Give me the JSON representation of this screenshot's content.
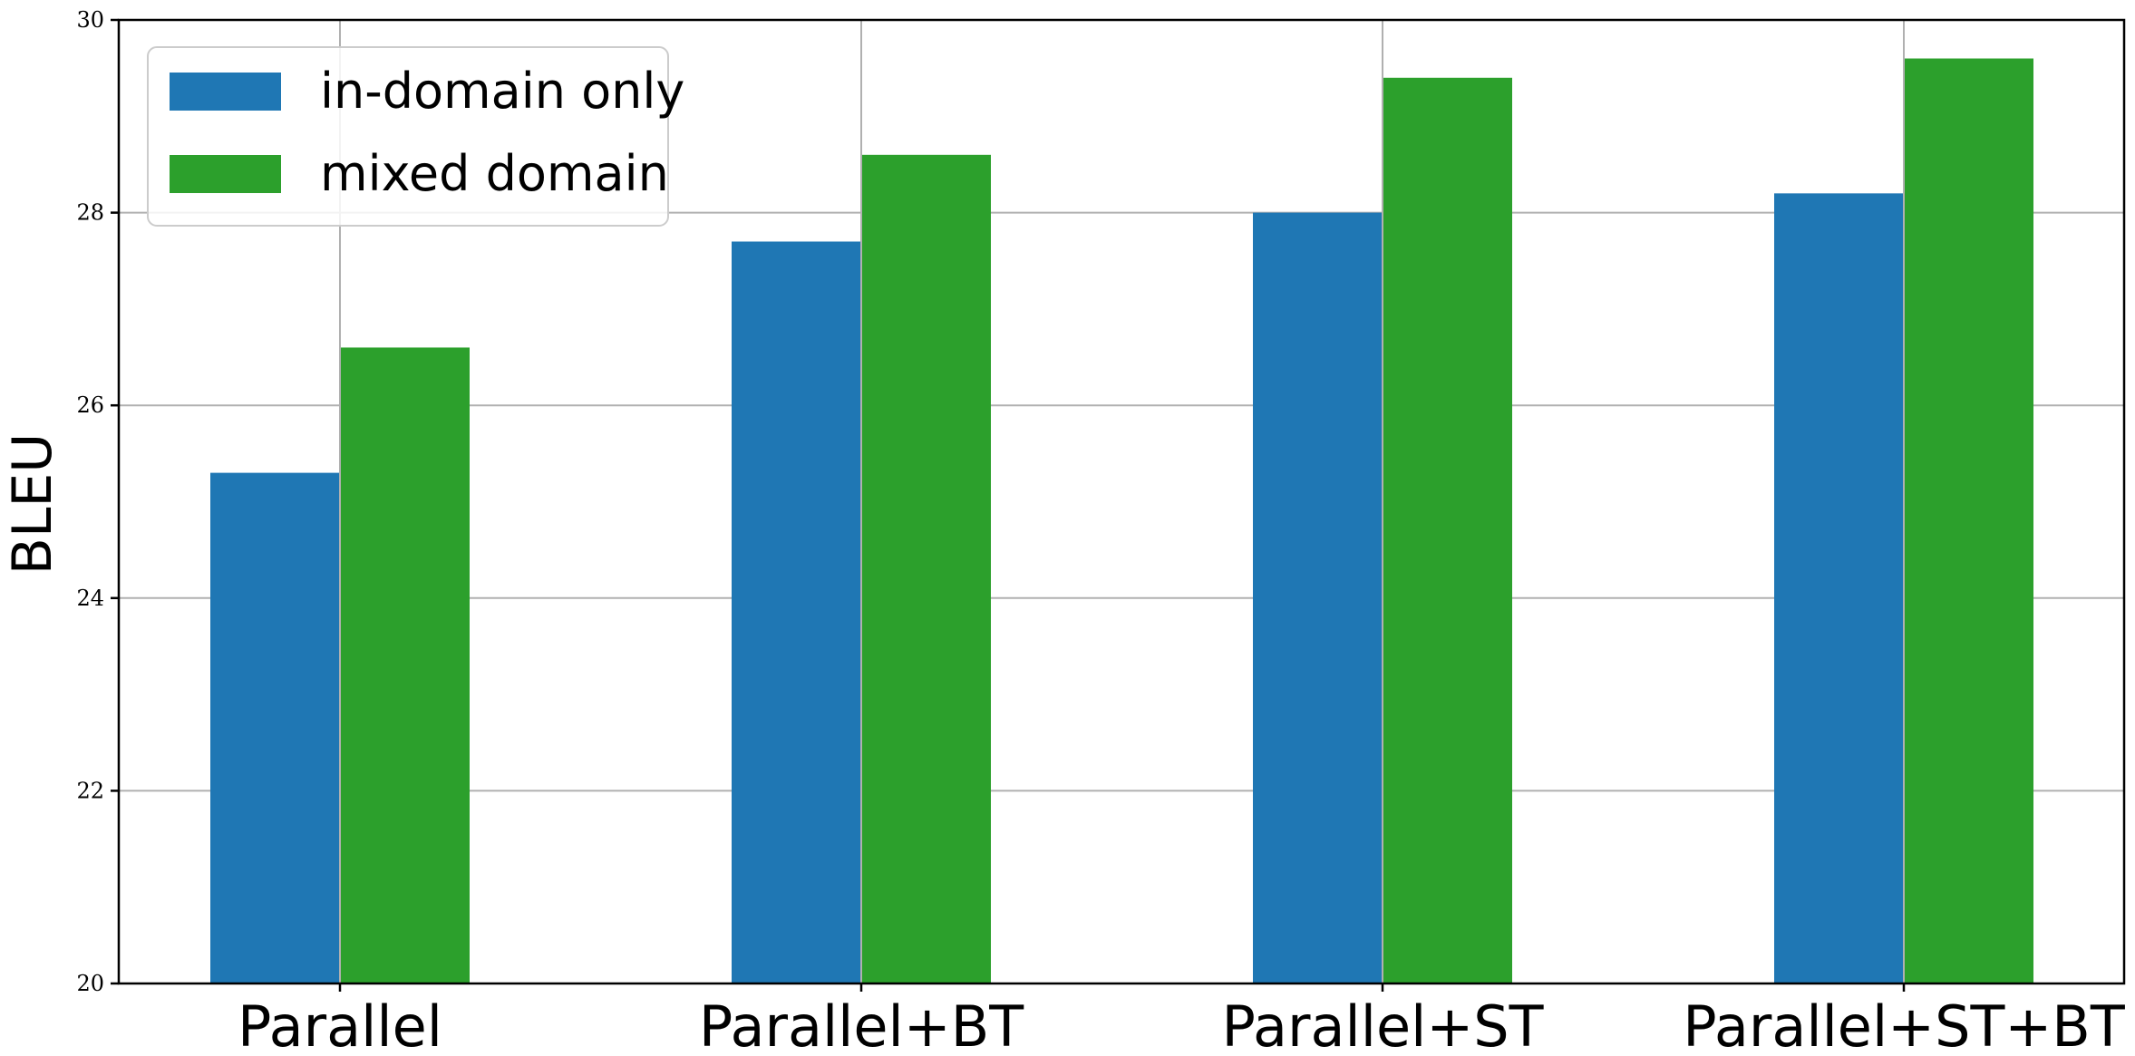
{
  "chart_data": {
    "type": "bar",
    "categories": [
      "Parallel",
      "Parallel+BT",
      "Parallel+ST",
      "Parallel+ST+BT"
    ],
    "series": [
      {
        "name": "in-domain only",
        "color": "#1f77b4",
        "values": [
          25.3,
          27.7,
          28.0,
          28.2
        ]
      },
      {
        "name": "mixed domain",
        "color": "#2ca02c",
        "values": [
          26.6,
          28.6,
          29.4,
          29.6
        ]
      }
    ],
    "title": "",
    "xlabel": "",
    "ylabel": "BLEU",
    "ylim": [
      20,
      30
    ],
    "yticks": [
      20,
      22,
      24,
      26,
      28,
      30
    ],
    "grid": true,
    "legend_position": "top-left"
  }
}
